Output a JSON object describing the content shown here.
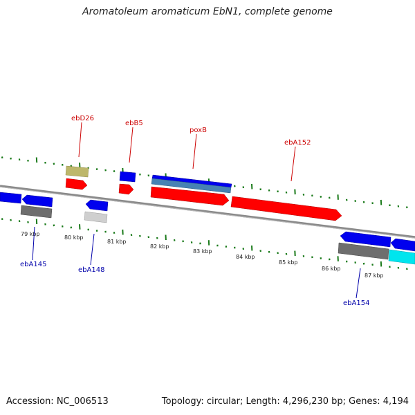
{
  "title": "Aromatoleum aromaticum EbN1, complete genome",
  "footer": {
    "accession": "Accession: NC_006513",
    "summary": "Topology: circular; Length: 4,296,230 bp; Genes: 4,194"
  },
  "colors": {
    "backbone": "#8a8a8a",
    "tick": "#1a7a1a",
    "forward_label": "#cc0000",
    "reverse_label": "#0000aa",
    "gene_red": "#ff0000",
    "gene_blue": "#0000ee",
    "gene_steel": "#4682b4",
    "gene_tan": "#bdb76b",
    "gene_gray": "#6e6e6e",
    "gene_lightgray": "#cfcfcf",
    "gene_cyan": "#00e5ee"
  },
  "kbp_labels": [
    "79 kbp",
    "80 kbp",
    "81 kbp",
    "82 kbp",
    "83 kbp",
    "84 kbp",
    "85 kbp",
    "86 kbp",
    "87 kbp"
  ],
  "gene_labels": {
    "forward": [
      "ebD26",
      "ebB5",
      "poxB",
      "ebA152"
    ],
    "reverse": [
      "ebA145",
      "ebA148",
      "ebA154"
    ]
  }
}
